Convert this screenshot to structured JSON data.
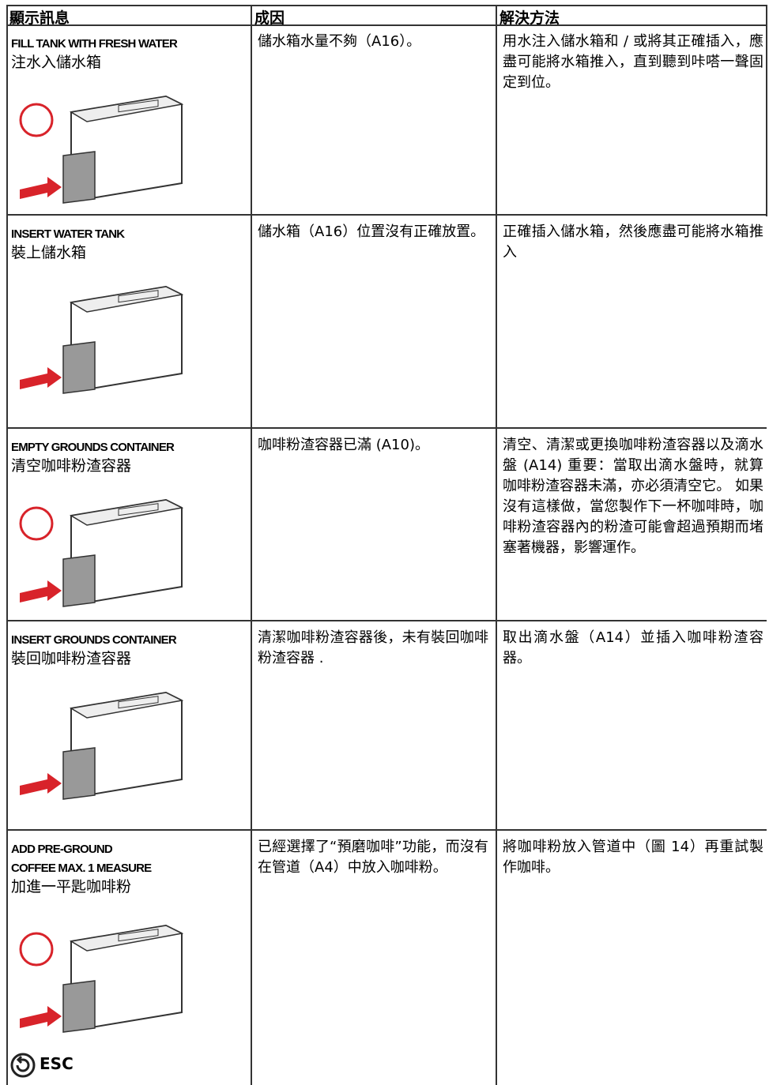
{
  "table": {
    "header": [
      "顯示訊息",
      "成因",
      "解決方法"
    ],
    "rows": [
      {
        "message_en": [
          "FILL TANK WITH FRESH WATER"
        ],
        "message_zh": "注水入儲水箱",
        "cause": "儲水箱水量不夠（A16）。",
        "solution": "用水注入儲水箱和 / 或將其正確插入，應盡可能將水箱推入，直到聽到咔嗒一聲固定到位。"
      },
      {
        "message_en": [
          "INSERT WATER TANK"
        ],
        "message_zh": "裝上儲水箱",
        "cause": "儲水箱（A16）位置沒有正確放置。",
        "solution": "正確插入儲水箱，然後應盡可能將水箱推入"
      },
      {
        "message_en": [
          "EMPTY GROUNDS CONTAINER"
        ],
        "message_zh": "清空咖啡粉渣容器",
        "cause": "咖啡粉渣容器已滿 (A10)。",
        "solution": "清空、清潔或更換咖啡粉渣容器以及滴水盤 (A14) 重要：當取出滴水盤時，就算咖啡粉渣容器未滿，亦必須清空它。 如果沒有這樣做，當您製作下一杯咖啡時，咖啡粉渣容器內的粉渣可能會超過預期而堵塞著機器，影響運作。"
      },
      {
        "message_en": [
          "INSERT GROUNDS CONTAINER"
        ],
        "message_zh": "裝回咖啡粉渣容器",
        "cause": "清潔咖啡粉渣容器後，未有裝回咖啡粉渣容器 .",
        "solution": "取出滴水盤（A14）並插入咖啡粉渣容器。"
      },
      {
        "message_en": [
          "ADD PRE-GROUND",
          "COFFEE MAX. 1 MEASURE"
        ],
        "message_zh": "加進一平匙咖啡粉",
        "cause": "已經選擇了“預磨咖啡”功能，而沒有在管道（A4）中放入咖啡粉。",
        "solution": "將咖啡粉放入管道中（圖 14）再重試製作咖啡。"
      }
    ]
  },
  "footer_label": "ESC"
}
